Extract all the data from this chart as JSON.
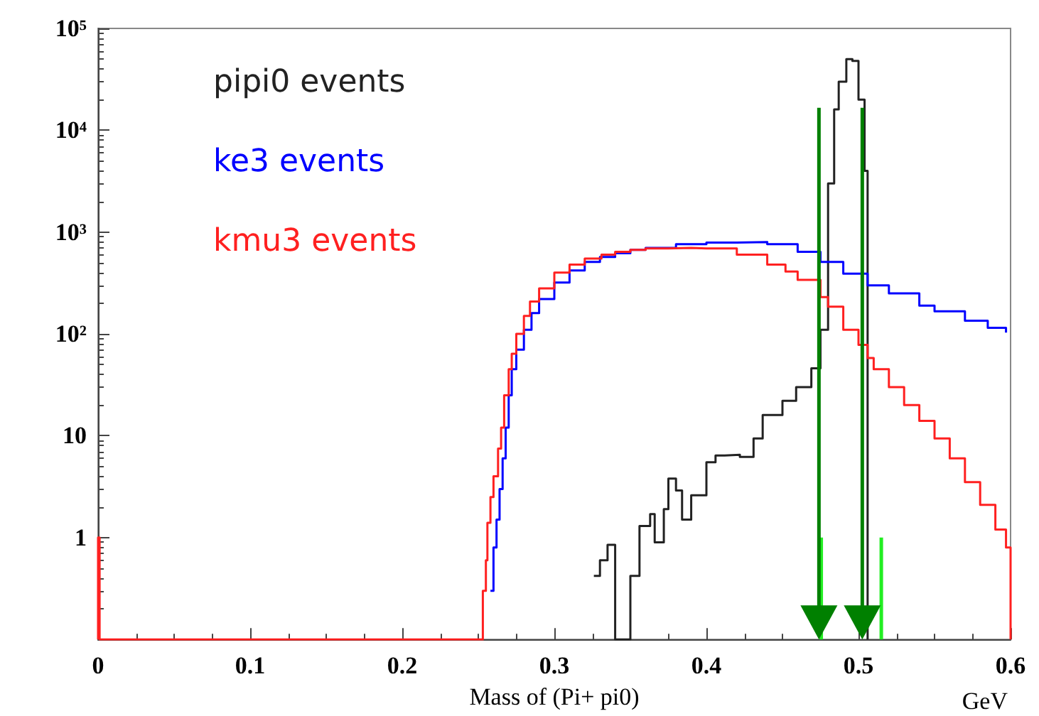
{
  "chart_data": {
    "type": "step",
    "xlabel": "Mass of (Pi+ pi0)",
    "annotations": [
      "GeV"
    ],
    "log": "y",
    "grid": false,
    "legend": "top left",
    "xlim": [
      0,
      0.6
    ],
    "xticks": [
      0,
      0.1,
      0.2,
      0.3,
      0.4,
      0.5,
      0.6
    ],
    "ylim": [
      0.1,
      100000
    ],
    "yticks": [
      {
        "value": 0.1,
        "label": null
      },
      1,
      10,
      {
        "value": 100,
        "label": "10²"
      },
      {
        "value": 1000,
        "label": "10³"
      },
      {
        "value": 10000,
        "label": "10⁴"
      },
      {
        "value": 100000,
        "label": "10⁵"
      }
    ],
    "ref_lines": [
      {
        "axis": "x",
        "value": 0.474,
        "color": "#008000"
      },
      {
        "axis": "x",
        "value": 0.5025,
        "color": "#008000"
      }
    ],
    "series": [
      {
        "name": "pipi0 events",
        "color": "#222222",
        "x": [
          0.326,
          0.33,
          0.335,
          0.34,
          0.35,
          0.356,
          0.363,
          0.366,
          0.372,
          0.375,
          0.38,
          0.384,
          0.39,
          0.4,
          0.406,
          0.412,
          0.422,
          0.431,
          0.437,
          0.45,
          0.459,
          0.469,
          0.475,
          0.48,
          0.484,
          0.487,
          0.492,
          0.496,
          0.5,
          0.504,
          0.506
        ],
        "values": [
          0.42,
          0.6,
          0.85,
          0.1,
          0.42,
          1.3,
          1.7,
          0.9,
          1.9,
          3.8,
          2.9,
          1.5,
          2.6,
          5.5,
          6.4,
          6.5,
          6.2,
          9.4,
          16,
          22,
          30,
          46,
          110,
          3000,
          16000,
          30000,
          50000,
          48000,
          20000,
          4000,
          0.1
        ]
      },
      {
        "name": "ke3 events",
        "color": "#0000ff",
        "x": [
          0.258,
          0.26,
          0.262,
          0.264,
          0.266,
          0.268,
          0.27,
          0.272,
          0.275,
          0.28,
          0.285,
          0.29,
          0.3,
          0.31,
          0.32,
          0.33,
          0.34,
          0.35,
          0.36,
          0.38,
          0.4,
          0.42,
          0.44,
          0.46,
          0.475,
          0.49,
          0.506,
          0.52,
          0.54,
          0.55,
          0.57,
          0.585,
          0.597
        ],
        "values": [
          0.3,
          0.8,
          1.5,
          3,
          6,
          12,
          25,
          45,
          70,
          110,
          160,
          220,
          320,
          420,
          510,
          570,
          620,
          670,
          700,
          760,
          790,
          800,
          760,
          640,
          510,
          390,
          300,
          250,
          190,
          167,
          135,
          115,
          103
        ]
      },
      {
        "name": "kmu3 events",
        "color": "#ff2020",
        "x": [
          0,
          0,
          0.001,
          0.253,
          0.255,
          0.256,
          0.258,
          0.26,
          0.263,
          0.265,
          0.267,
          0.27,
          0.272,
          0.275,
          0.28,
          0.284,
          0.29,
          0.3,
          0.31,
          0.32,
          0.331,
          0.34,
          0.35,
          0.36,
          0.375,
          0.39,
          0.4,
          0.42,
          0.44,
          0.452,
          0.46,
          0.475,
          0.48,
          0.49,
          0.5,
          0.506,
          0.51,
          0.52,
          0.53,
          0.54,
          0.55,
          0.56,
          0.57,
          0.58,
          0.59,
          0.597,
          0.6
        ],
        "values": [
          0.1,
          1,
          0.1,
          0.3,
          0.6,
          1.4,
          2.5,
          4,
          7.5,
          12,
          25,
          45,
          64,
          100,
          150,
          208,
          280,
          400,
          480,
          550,
          600,
          640,
          670,
          690,
          700,
          690,
          690,
          600,
          480,
          410,
          340,
          230,
          185,
          110,
          78,
          58,
          45,
          30,
          20,
          14,
          9.4,
          6,
          3.5,
          2.1,
          1.2,
          0.8,
          0.1
        ]
      },
      {
        "type": "line",
        "color": "#22ee22",
        "x": [
          0.4755,
          0.4755
        ],
        "values": [
          1,
          0.1
        ]
      },
      {
        "type": "line",
        "color": "#22ee22",
        "x": [
          0.515,
          0.515
        ],
        "values": [
          1,
          0.1
        ]
      }
    ]
  }
}
